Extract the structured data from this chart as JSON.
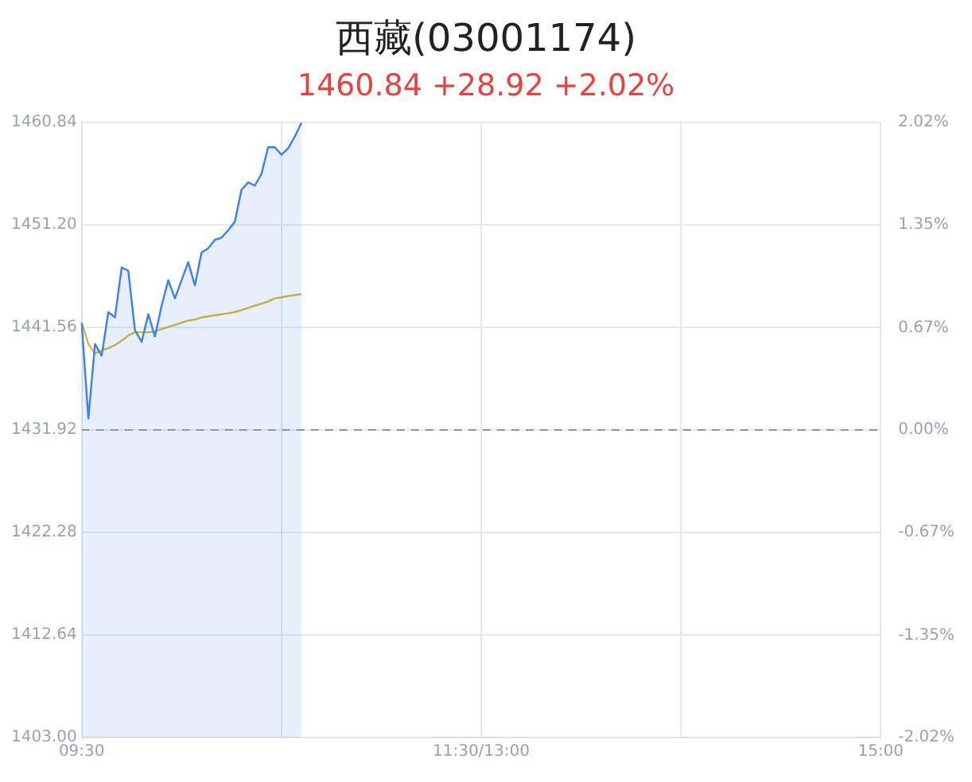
{
  "chart_data": {
    "type": "area",
    "title": "西藏(03001174)",
    "subtitle": "1460.84 +28.92 +2.02%",
    "categories": [
      "09:30",
      null,
      null,
      null,
      null,
      null,
      null,
      null,
      null,
      null,
      null,
      null,
      null,
      null,
      null,
      null,
      null,
      null,
      null,
      null,
      null,
      null,
      null,
      null,
      null,
      null,
      null,
      null,
      null,
      null,
      null,
      null,
      null,
      null,
      null,
      null,
      null,
      null,
      null,
      null,
      null,
      null,
      null,
      null,
      null,
      null,
      null,
      null,
      null,
      null,
      null,
      null,
      null,
      null,
      null,
      null,
      null,
      null,
      null,
      null,
      "11:30/13:00",
      null,
      null,
      null,
      null,
      null,
      null,
      null,
      null,
      null,
      null,
      null,
      null,
      null,
      null,
      null,
      null,
      null,
      null,
      null,
      null,
      null,
      null,
      null,
      null,
      null,
      null,
      null,
      null,
      null,
      null,
      null,
      null,
      null,
      null,
      null,
      null,
      null,
      null,
      null,
      null,
      null,
      null,
      null,
      null,
      null,
      null,
      null,
      null,
      null,
      null,
      null,
      null,
      null,
      null,
      null,
      null,
      null,
      null,
      null,
      "15:00"
    ],
    "ylim": [
      1403.0,
      1460.84
    ],
    "yticks": [
      {
        "value": 1403.0,
        "label": "1403.00"
      },
      {
        "value": 1412.64,
        "label": "1412.64"
      },
      {
        "value": 1422.28,
        "label": "1422.28"
      },
      {
        "value": 1431.92,
        "label": "1431.92"
      },
      {
        "value": 1441.56,
        "label": "1441.56"
      },
      {
        "value": 1451.2,
        "label": "1451.20"
      },
      {
        "value": 1460.84,
        "label": "1460.84"
      }
    ],
    "y2lim": [
      -2.02,
      2.02
    ],
    "y2ticks": [
      {
        "value": -2.02,
        "label": "-2.02%"
      },
      {
        "value": -1.35,
        "label": "-1.35%"
      },
      {
        "value": -0.67,
        "label": "-0.67%"
      },
      {
        "value": 0,
        "label": "0.00%"
      },
      {
        "value": 0.67,
        "label": "0.67%"
      },
      {
        "value": 1.35,
        "label": "1.35%"
      },
      {
        "value": 2.02,
        "label": "2.02%"
      }
    ],
    "grid": true,
    "line_style": "solid",
    "ref_lines": [
      {
        "axis": "y",
        "value": 1431.92,
        "color": "#8a93a8",
        "line_style": "dashed"
      }
    ],
    "series": [
      {
        "color": "#3b7ff0",
        "values": [
          1442.0,
          1433.0,
          1440.0,
          1438.9,
          1443.0,
          1442.5,
          1447.2,
          1446.9,
          1441.3,
          1440.2,
          1442.8,
          1440.7,
          1443.6,
          1446.0,
          1444.3,
          1446.0,
          1447.7,
          1445.5,
          1448.6,
          1449.0,
          1449.8,
          1450.0,
          1450.7,
          1451.5,
          1454.5,
          1455.2,
          1454.9,
          1456.0,
          1458.5,
          1458.5,
          1457.8,
          1458.4,
          1459.5,
          1460.8,
          null,
          null,
          null,
          null,
          null,
          null,
          null,
          null,
          null,
          null,
          null,
          null,
          null,
          null,
          null,
          null,
          null,
          null,
          null,
          null,
          null,
          null,
          null,
          null,
          null,
          null,
          null,
          null,
          null,
          null,
          null,
          null,
          null,
          null,
          null,
          null,
          null,
          null,
          null,
          null,
          null,
          null,
          null,
          null,
          null,
          null,
          null,
          null,
          null,
          null,
          null,
          null,
          null,
          null,
          null,
          null,
          null,
          null,
          null,
          null,
          null,
          null,
          null,
          null,
          null,
          null,
          null,
          null,
          null,
          null,
          null,
          null,
          null,
          null,
          null,
          null,
          null,
          null,
          null,
          null,
          null,
          null,
          null,
          null,
          null,
          null,
          null
        ]
      },
      {
        "type": "line",
        "color": "#d4b82a",
        "values": [
          1442.0,
          1440.0,
          1439.1,
          1439.4,
          1439.6,
          1439.9,
          1440.3,
          1440.8,
          1441.1,
          1441.1,
          1441.1,
          1441.2,
          1441.4,
          1441.6,
          1441.8,
          1442.0,
          1442.2,
          1442.3,
          1442.5,
          1442.6,
          1442.7,
          1442.8,
          1442.9,
          1443.0,
          1443.2,
          1443.4,
          1443.6,
          1443.8,
          1444.0,
          1444.3,
          1444.4,
          1444.5,
          1444.6,
          1444.7,
          null,
          null,
          null,
          null,
          null,
          null,
          null,
          null,
          null,
          null,
          null,
          null,
          null,
          null,
          null,
          null,
          null,
          null,
          null,
          null,
          null,
          null,
          null,
          null,
          null,
          null,
          null,
          null,
          null,
          null,
          null,
          null,
          null,
          null,
          null,
          null,
          null,
          null,
          null,
          null,
          null,
          null,
          null,
          null,
          null,
          null,
          null,
          null,
          null,
          null,
          null,
          null,
          null,
          null,
          null,
          null,
          null,
          null,
          null,
          null,
          null,
          null,
          null,
          null,
          null,
          null,
          null,
          null,
          null,
          null,
          null,
          null,
          null,
          null,
          null,
          null,
          null,
          null,
          null,
          null,
          null,
          null,
          null,
          null,
          null,
          null,
          null
        ]
      }
    ]
  }
}
